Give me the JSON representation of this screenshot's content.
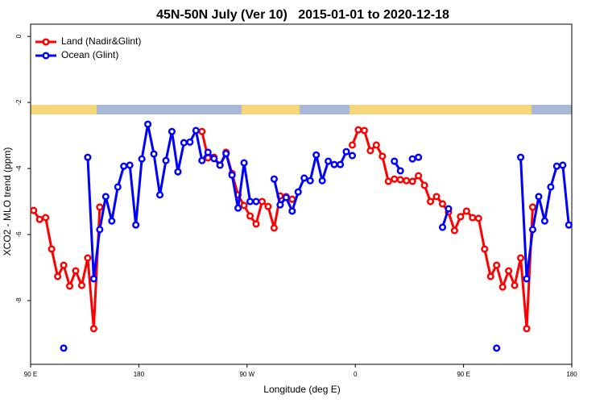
{
  "chart_data": {
    "type": "line",
    "title": "45N-50N July (Ver 10)   2015-01-01 to 2020-12-18",
    "x_label": "Longitude (deg E)",
    "y_label": "XCO2 - MLO trend (ppm)",
    "xlim": [
      90,
      540
    ],
    "xticks": [
      {
        "value": 90,
        "label": "90 E"
      },
      180,
      {
        "value": 270,
        "label": "90 W"
      },
      {
        "value": 360,
        "label": "0"
      },
      {
        "value": 450,
        "label": "90 E"
      },
      {
        "value": 540,
        "label": "180"
      }
    ],
    "ylim": [
      -9.93,
      0.37
    ],
    "yticks": [
      0,
      -2,
      -4,
      -6,
      -8
    ],
    "legend": "top-left",
    "x": [
      92.5,
      97.5,
      102.5,
      107.5,
      112.5,
      117.5,
      122.5,
      127.5,
      132.5,
      137.5,
      142.5,
      147.5,
      152.5,
      157.5,
      162.5,
      167.5,
      172.5,
      177.5,
      182.5,
      187.5,
      192.5,
      197.5,
      202.5,
      207.5,
      212.5,
      217.5,
      222.5,
      227.5,
      232.5,
      237.5,
      242.5,
      247.5,
      252.5,
      257.5,
      262.5,
      267.5,
      272.5,
      277.5,
      282.5,
      287.5,
      292.5,
      297.5,
      302.5,
      307.5,
      312.5,
      317.5,
      322.5,
      327.5,
      332.5,
      337.5,
      342.5,
      347.5,
      352.5,
      357.5,
      362.5,
      367.5,
      372.5,
      377.5,
      382.5,
      387.5,
      392.5,
      397.5,
      402.5,
      407.5,
      412.5,
      417.5,
      422.5,
      427.5,
      432.5,
      437.5,
      442.5,
      447.5,
      452.5,
      457.5,
      462.5,
      467.5,
      472.5,
      477.5,
      482.5,
      487.5,
      492.5,
      497.5,
      502.5,
      507.5,
      512.5,
      517.5,
      522.5,
      527.5,
      532.5,
      537.5
    ],
    "series": [
      {
        "name": "Land (Nadir&Glint)",
        "color": "#ff0000",
        "values": [
          -5.27,
          -5.54,
          -5.49,
          -6.44,
          -7.27,
          -6.93,
          -7.56,
          -7.1,
          -7.54,
          -6.71,
          -8.85,
          -5.17,
          null,
          null,
          null,
          null,
          null,
          null,
          null,
          null,
          null,
          null,
          null,
          null,
          null,
          null,
          null,
          null,
          -2.88,
          -3.68,
          -3.66,
          -3.9,
          -3.51,
          -4.15,
          -4.8,
          -5.12,
          -5.44,
          -5.68,
          -5.0,
          -5.15,
          -5.8,
          -4.83,
          -4.85,
          -4.93,
          null,
          null,
          null,
          null,
          null,
          null,
          null,
          null,
          null,
          -3.29,
          -2.83,
          -2.85,
          -3.46,
          -3.29,
          -3.63,
          -4.39,
          -4.32,
          -4.34,
          -4.37,
          -4.39,
          -4.22,
          -4.51,
          -5.0,
          -4.85,
          -5.07,
          -5.32,
          -5.88,
          -5.46,
          -5.29,
          -5.49,
          -5.51,
          -6.44,
          -7.27,
          -6.93,
          -7.59,
          -7.1,
          -7.54,
          -6.71,
          -8.85,
          -5.17,
          null,
          null,
          null,
          null,
          null,
          null
        ]
      },
      {
        "name": "Ocean (Glint)",
        "color": "#0000ff",
        "values": [
          null,
          null,
          null,
          null,
          null,
          -9.44,
          null,
          null,
          null,
          -3.66,
          -7.34,
          -5.85,
          -4.85,
          -5.59,
          -4.56,
          -3.93,
          -3.9,
          -5.71,
          -3.71,
          -2.66,
          -3.56,
          -4.8,
          -3.76,
          -2.88,
          -4.1,
          -3.22,
          -3.2,
          -2.85,
          -3.76,
          -3.51,
          -3.7,
          -3.9,
          -3.55,
          -4.2,
          -5.2,
          -3.83,
          -5.0,
          -5.0,
          null,
          null,
          -4.32,
          -5.1,
          -4.88,
          -5.29,
          -4.71,
          -4.29,
          -4.37,
          -3.59,
          -4.37,
          -3.78,
          -3.88,
          -3.88,
          -3.49,
          -3.61,
          null,
          null,
          null,
          null,
          null,
          null,
          -3.78,
          -4.07,
          null,
          -3.71,
          -3.66,
          null,
          null,
          null,
          -5.78,
          -5.22,
          null,
          null,
          null,
          null,
          null,
          null,
          null,
          -9.44,
          null,
          null,
          null,
          -3.66,
          -7.34,
          -5.85,
          -4.85,
          -5.59,
          -4.56,
          -3.93,
          -3.9,
          -5.71
        ]
      }
    ]
  }
}
